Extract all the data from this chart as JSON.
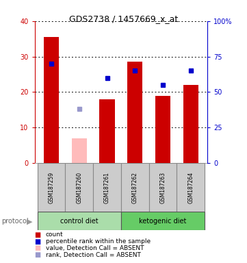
{
  "title": "GDS2738 / 1457669_x_at",
  "samples": [
    "GSM187259",
    "GSM187260",
    "GSM187261",
    "GSM187262",
    "GSM187263",
    "GSM187264"
  ],
  "bar_heights": [
    35.5,
    0,
    18.0,
    28.5,
    19.0,
    22.0
  ],
  "absent_bar_heights": [
    0,
    7.0,
    0,
    0,
    0,
    0
  ],
  "absent_bar_color": "#ffbbbb",
  "blue_dot_values_pct": [
    70,
    0,
    60,
    65,
    55,
    65
  ],
  "blue_dot_absent_pct": [
    0,
    38,
    0,
    0,
    0,
    0
  ],
  "blue_dot_color": "#0000cc",
  "blue_dot_absent_color": "#9999cc",
  "ylim_left": [
    0,
    40
  ],
  "ylim_right": [
    0,
    100
  ],
  "yticks_left": [
    0,
    10,
    20,
    30,
    40
  ],
  "yticks_right": [
    0,
    25,
    50,
    75,
    100
  ],
  "ytick_labels_right": [
    "0",
    "25",
    "50",
    "75",
    "100%"
  ],
  "ytick_labels_left": [
    "0",
    "10",
    "20",
    "30",
    "40"
  ],
  "left_axis_color": "#cc0000",
  "right_axis_color": "#0000cc",
  "control_diet_color": "#aaddaa",
  "ketogenic_diet_color": "#66cc66",
  "sample_box_color": "#cccccc",
  "bar_width": 0.55
}
